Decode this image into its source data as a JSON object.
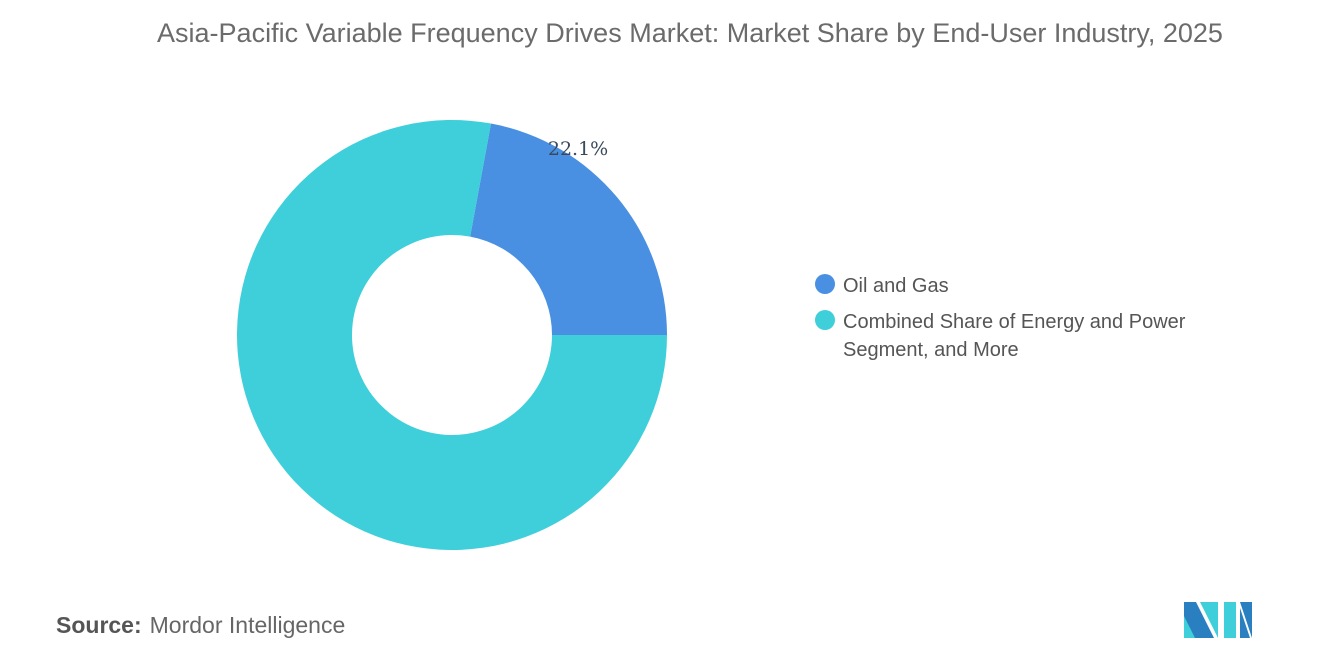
{
  "chart_data": {
    "type": "pie",
    "subtype": "donut",
    "title": "Asia-Pacific Variable Frequency Drives Market: Market Share by End-User Industry, 2025",
    "categories": [
      "Oil and Gas",
      "Combined Share of Energy and Power Segment, and More"
    ],
    "values": [
      22.1,
      77.9
    ],
    "data_labels": [
      "22.1%",
      ""
    ],
    "colors": [
      "#4a90e2",
      "#3ecfda"
    ],
    "legend_position": "right"
  },
  "source": {
    "label": "Source:",
    "value": "Mordor Intelligence"
  },
  "logo": {
    "name": "mordor-intelligence-logo",
    "colors": [
      "#2a7fc1",
      "#3ecfda"
    ]
  }
}
